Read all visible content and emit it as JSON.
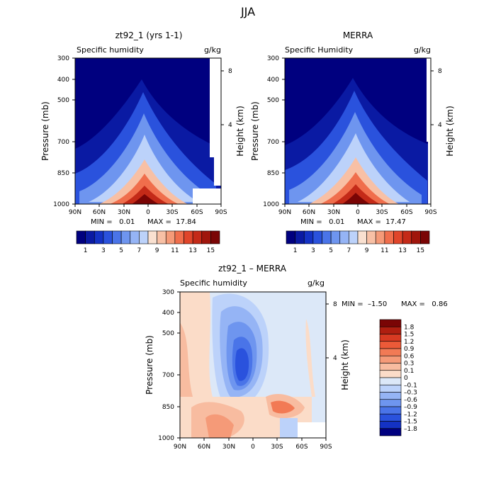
{
  "title": "JJA",
  "chart_data": [
    {
      "type": "heatmap",
      "title": "zt92_1 (yrs 1-1)",
      "variable_label": "Specific humidity",
      "units_label": "g/kg",
      "ylabel": "Pressure (mb)",
      "ylabel_right": "Height (km)",
      "x_ticks": [
        "90N",
        "60N",
        "30N",
        "0",
        "30S",
        "60S",
        "90S"
      ],
      "y_ticks": [
        "300",
        "400",
        "500",
        "700",
        "850",
        "1000"
      ],
      "y_ticks_right": [
        "8",
        "4"
      ],
      "min_text": "MIN =   0.01",
      "max_text": "MAX =  17.84",
      "colorbar": {
        "labels": [
          "1",
          "3",
          "5",
          "7",
          "9",
          "11",
          "13",
          "15"
        ],
        "colors": [
          "#00007f",
          "#0a1aa3",
          "#1432c4",
          "#2a52dd",
          "#4a74e8",
          "#6e95ef",
          "#95b4f5",
          "#bcd2fa",
          "#f9e0d0",
          "#f8c0a5",
          "#f59a78",
          "#f06e4c",
          "#e0452a",
          "#c42a18",
          "#a0160c",
          "#7a0505"
        ]
      }
    },
    {
      "type": "heatmap",
      "title": "MERRA",
      "variable_label": "Specific Humidity",
      "units_label": "g/kg",
      "ylabel": "Pressure (mb)",
      "ylabel_right": "Height (km)",
      "x_ticks": [
        "90N",
        "60N",
        "30N",
        "0",
        "30S",
        "60S",
        "90S"
      ],
      "y_ticks": [
        "300",
        "400",
        "500",
        "700",
        "850",
        "1000"
      ],
      "y_ticks_right": [
        "8",
        "4"
      ],
      "min_text": "MIN =   0.01",
      "max_text": "MAX =  17.47",
      "colorbar": {
        "labels": [
          "1",
          "3",
          "5",
          "7",
          "9",
          "11",
          "13",
          "15"
        ],
        "colors": [
          "#00007f",
          "#0a1aa3",
          "#1432c4",
          "#2a52dd",
          "#4a74e8",
          "#6e95ef",
          "#95b4f5",
          "#bcd2fa",
          "#f9e0d0",
          "#f8c0a5",
          "#f59a78",
          "#f06e4c",
          "#e0452a",
          "#c42a18",
          "#a0160c",
          "#7a0505"
        ]
      }
    },
    {
      "type": "heatmap",
      "title": "zt92_1 – MERRA",
      "variable_label": "Specific humidity",
      "units_label": "g/kg",
      "ylabel": "Pressure (mb)",
      "ylabel_right": "Height (km)",
      "x_ticks": [
        "90N",
        "60N",
        "30N",
        "0",
        "30S",
        "60S",
        "90S"
      ],
      "y_ticks": [
        "300",
        "400",
        "500",
        "700",
        "850",
        "1000"
      ],
      "y_ticks_right": [
        "8",
        "4"
      ],
      "min_text": "MIN =  –1.50",
      "max_text": "MAX =   0.86",
      "colorbar": {
        "labels": [
          "1.8",
          "1.5",
          "1.2",
          "0.9",
          "0.6",
          "0.3",
          "0.1",
          "0",
          "–0.1",
          "–0.3",
          "–0.6",
          "–0.9",
          "–1.2",
          "–1.5",
          "–1.8"
        ],
        "colors": [
          "#7a0505",
          "#b01e10",
          "#d83a22",
          "#ec5a38",
          "#f27a55",
          "#f59a78",
          "#f8bca0",
          "#fbdcc8",
          "#dce8f8",
          "#bcd2fa",
          "#95b4f5",
          "#6e95ef",
          "#4a74e8",
          "#2a52dd",
          "#1432c4",
          "#00007f"
        ]
      }
    }
  ]
}
